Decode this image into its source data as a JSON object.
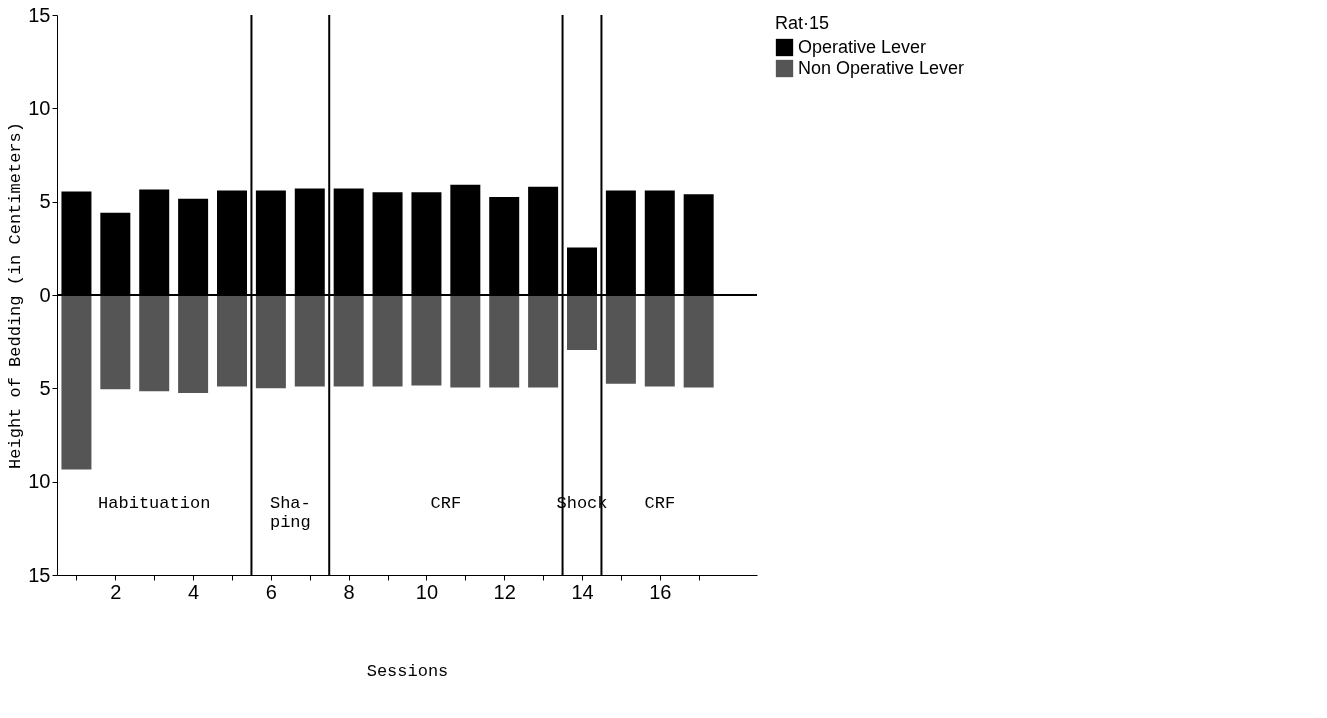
{
  "chart_data": {
    "type": "bar",
    "xlabel": "Sessions",
    "ylabel": "Height of Bedding (in Centimeters)",
    "legend_title": "Rat·15",
    "x": [
      1,
      2,
      3,
      4,
      5,
      6,
      7,
      8,
      9,
      10,
      11,
      12,
      13,
      14,
      15,
      16,
      17
    ],
    "series": [
      {
        "name": "Operative Lever",
        "color": "#000000",
        "values": [
          5.55,
          4.4,
          5.65,
          5.15,
          5.6,
          5.6,
          5.7,
          5.7,
          5.5,
          5.5,
          5.9,
          5.25,
          5.8,
          2.55,
          5.6,
          5.6,
          5.4
        ]
      },
      {
        "name": "Non Operative Lever",
        "color": "#555555",
        "values": [
          -9.35,
          -5.05,
          -5.15,
          -5.25,
          -4.9,
          -5.0,
          -4.9,
          -4.9,
          -4.9,
          -4.85,
          -4.95,
          -4.95,
          -4.95,
          -2.95,
          -4.75,
          -4.9,
          -4.95
        ]
      }
    ],
    "xlim": [
      0.5,
      18.5
    ],
    "xticks": [
      {
        "value": 1,
        "label": null
      },
      2,
      {
        "value": 3,
        "label": null
      },
      4,
      {
        "value": 5,
        "label": null
      },
      6,
      {
        "value": 7,
        "label": null
      },
      8,
      {
        "value": 9,
        "label": null
      },
      10,
      {
        "value": 11,
        "label": null
      },
      12,
      {
        "value": 13,
        "label": null
      },
      14,
      {
        "value": 15,
        "label": null
      },
      16,
      {
        "value": 17,
        "label": null
      }
    ],
    "ylim": [
      -15,
      15
    ],
    "yticks": [
      {
        "value": -15,
        "label": "15"
      },
      {
        "value": -10,
        "label": "10"
      },
      {
        "value": -5,
        "label": "5"
      },
      0,
      5,
      10,
      15
    ],
    "ref_lines": [
      {
        "axis": "y",
        "value": 0,
        "color": "#000000"
      },
      {
        "axis": "x",
        "value": 5.5,
        "color": "#000000"
      },
      {
        "axis": "x",
        "value": 7.5,
        "color": "#000000"
      },
      {
        "axis": "x",
        "value": 13.5,
        "color": "#000000"
      },
      {
        "axis": "x",
        "value": 14.5,
        "color": "#000000"
      }
    ],
    "annotations": [
      "Habituation",
      "Sha-\nping",
      "CRF",
      "Shock",
      "CRF"
    ],
    "stacked": true,
    "legend": "top right",
    "grid": false
  }
}
